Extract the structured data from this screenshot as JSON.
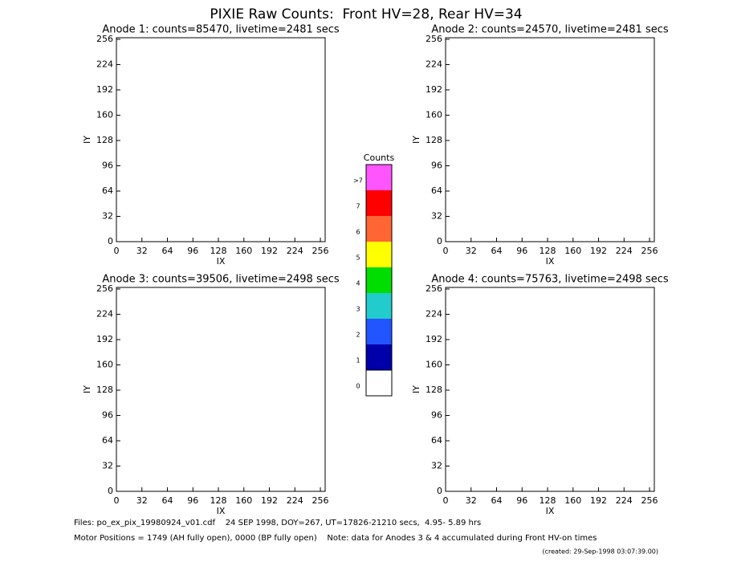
{
  "title": "PIXIE Raw Counts:  Front HV=28, Rear HV=34",
  "chart_data": [
    {
      "type": "heatmap",
      "title": "Anode 1: counts=85470, livetime=2481 secs",
      "xlabel": "IX",
      "ylabel": "IY",
      "xlim": [
        0,
        262
      ],
      "ylim": [
        0,
        258
      ],
      "xticks": [
        0,
        32,
        64,
        96,
        128,
        160,
        192,
        224,
        256
      ],
      "yticks": [
        0,
        32,
        64,
        96,
        128,
        160,
        192,
        224,
        256
      ]
    },
    {
      "type": "heatmap",
      "title": "Anode 2: counts=24570, livetime=2481 secs",
      "xlabel": "IX",
      "ylabel": "IY",
      "xlim": [
        0,
        262
      ],
      "ylim": [
        0,
        258
      ],
      "xticks": [
        0,
        32,
        64,
        96,
        128,
        160,
        192,
        224,
        256
      ],
      "yticks": [
        0,
        32,
        64,
        96,
        128,
        160,
        192,
        224,
        256
      ]
    },
    {
      "type": "heatmap",
      "title": "Anode 3: counts=39506, livetime=2498 secs",
      "xlabel": "IX",
      "ylabel": "IY",
      "xlim": [
        0,
        262
      ],
      "ylim": [
        0,
        258
      ],
      "xticks": [
        0,
        32,
        64,
        96,
        128,
        160,
        192,
        224,
        256
      ],
      "yticks": [
        0,
        32,
        64,
        96,
        128,
        160,
        192,
        224,
        256
      ]
    },
    {
      "type": "heatmap",
      "title": "Anode 4: counts=75763, livetime=2498 secs",
      "xlabel": "IX",
      "ylabel": "IY",
      "xlim": [
        0,
        262
      ],
      "ylim": [
        0,
        258
      ],
      "xticks": [
        0,
        32,
        64,
        96,
        128,
        160,
        192,
        224,
        256
      ],
      "yticks": [
        0,
        32,
        64,
        96,
        128,
        160,
        192,
        224,
        256
      ]
    }
  ],
  "colorbar": {
    "title": "Counts",
    "levels": [
      {
        "label": ">7",
        "color": "#ff55ff"
      },
      {
        "label": "7",
        "color": "#ff0000"
      },
      {
        "label": "6",
        "color": "#ff6633"
      },
      {
        "label": "5",
        "color": "#ffff00"
      },
      {
        "label": "4",
        "color": "#00dd00"
      },
      {
        "label": "3",
        "color": "#22cccc"
      },
      {
        "label": "2",
        "color": "#2255ff"
      },
      {
        "label": "1",
        "color": "#0000aa"
      },
      {
        "label": "0",
        "color": "#ffffff"
      }
    ]
  },
  "footer": {
    "files": "Files: po_ex_pix_19980924_v01.cdf    24 SEP 1998, DOY=267, UT=17826-21210 secs,  4.95- 5.89 hrs",
    "motor": "Motor Positions = 1749 (AH fully open), 0000 (BP fully open)    Note: data for Anodes 3 & 4 accumulated during Front HV-on times",
    "created": "(created: 29-Sep-1998 03:07:39.00)"
  }
}
